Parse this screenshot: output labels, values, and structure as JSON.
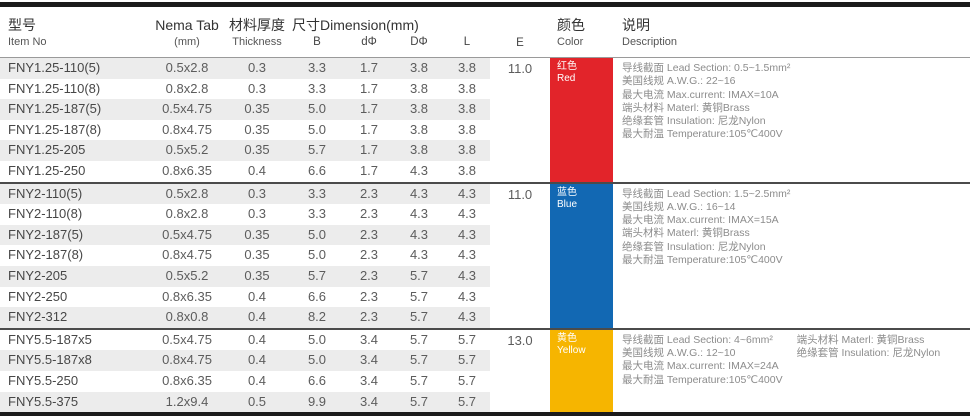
{
  "header": {
    "col_item": {
      "zh": "型号",
      "en": "Item No"
    },
    "col_nema": {
      "zh": "Nema Tab",
      "en": "(mm)"
    },
    "col_thickness": {
      "zh": "材料厚度",
      "en": "Thickness"
    },
    "col_dimension": {
      "zh": "尺寸Dimension(mm)"
    },
    "sub": {
      "b": "B",
      "d": "dΦ",
      "D": "DΦ",
      "l": "L",
      "e": "E"
    },
    "col_color": {
      "zh": "颜色",
      "en": "Color"
    },
    "col_desc": {
      "zh": "说明",
      "en": "Description"
    }
  },
  "colors": {
    "red": "#E2242A",
    "blue": "#1268B3",
    "yellow": "#F6B500",
    "stripe": "#ECECEC",
    "bar": "#1B1B1B"
  },
  "groups": [
    {
      "e": "11.0",
      "color_key": "red",
      "color_zh": "红色",
      "color_en": "Red",
      "rows": [
        [
          "FNY1.25-110(5)",
          "0.5x2.8",
          "0.3",
          "3.3",
          "1.7",
          "3.8",
          "3.8"
        ],
        [
          "FNY1.25-110(8)",
          "0.8x2.8",
          "0.3",
          "3.3",
          "1.7",
          "3.8",
          "3.8"
        ],
        [
          "FNY1.25-187(5)",
          "0.5x4.75",
          "0.35",
          "5.0",
          "1.7",
          "3.8",
          "3.8"
        ],
        [
          "FNY1.25-187(8)",
          "0.8x4.75",
          "0.35",
          "5.0",
          "1.7",
          "3.8",
          "3.8"
        ],
        [
          "FNY1.25-205",
          "0.5x5.2",
          "0.35",
          "5.7",
          "1.7",
          "3.8",
          "3.8"
        ],
        [
          "FNY1.25-250",
          "0.8x6.35",
          "0.4",
          "6.6",
          "1.7",
          "4.3",
          "3.8"
        ]
      ],
      "desc_left": [
        "导线截面  Lead Section: 0.5~1.5mm²",
        "美国线规  A.W.G.: 22~16",
        "最大电流  Max.current: IMAX=10A",
        "端头材料  Materl: 黄铜Brass",
        "绝缘套管  Insulation: 尼龙Nylon",
        "最大耐温  Temperature:105℃400V"
      ],
      "desc_right": []
    },
    {
      "e": "11.0",
      "color_key": "blue",
      "color_zh": "蓝色",
      "color_en": "Blue",
      "rows": [
        [
          "FNY2-110(5)",
          "0.5x2.8",
          "0.3",
          "3.3",
          "2.3",
          "4.3",
          "4.3"
        ],
        [
          "FNY2-110(8)",
          "0.8x2.8",
          "0.3",
          "3.3",
          "2.3",
          "4.3",
          "4.3"
        ],
        [
          "FNY2-187(5)",
          "0.5x4.75",
          "0.35",
          "5.0",
          "2.3",
          "4.3",
          "4.3"
        ],
        [
          "FNY2-187(8)",
          "0.8x4.75",
          "0.35",
          "5.0",
          "2.3",
          "4.3",
          "4.3"
        ],
        [
          "FNY2-205",
          "0.5x5.2",
          "0.35",
          "5.7",
          "2.3",
          "5.7",
          "4.3"
        ],
        [
          "FNY2-250",
          "0.8x6.35",
          "0.4",
          "6.6",
          "2.3",
          "5.7",
          "4.3"
        ],
        [
          "FNY2-312",
          "0.8x0.8",
          "0.4",
          "8.2",
          "2.3",
          "5.7",
          "4.3"
        ]
      ],
      "desc_left": [
        "导线截面  Lead Section: 1.5~2.5mm²",
        "美国线规  A.W.G.: 16~14",
        "最大电流  Max.current: IMAX=15A",
        "端头材料  Materl: 黄铜Brass",
        "绝缘套管  Insulation: 尼龙Nylon",
        "最大耐温  Temperature:105℃400V"
      ],
      "desc_right": []
    },
    {
      "e": "13.0",
      "color_key": "yellow",
      "color_zh": "黄色",
      "color_en": "Yellow",
      "rows": [
        [
          "FNY5.5-187x5",
          "0.5x4.75",
          "0.4",
          "5.0",
          "3.4",
          "5.7",
          "5.7"
        ],
        [
          "FNY5.5-187x8",
          "0.8x4.75",
          "0.4",
          "5.0",
          "3.4",
          "5.7",
          "5.7"
        ],
        [
          "FNY5.5-250",
          "0.8x6.35",
          "0.4",
          "6.6",
          "3.4",
          "5.7",
          "5.7"
        ],
        [
          "FNY5.5-375",
          "1.2x9.4",
          "0.5",
          "9.9",
          "3.4",
          "5.7",
          "5.7"
        ]
      ],
      "desc_left": [
        "导线截面  Lead Section: 4~6mm²",
        "美国线规  A.W.G.: 12~10",
        "最大电流  Max.current: IMAX=24A",
        "最大耐温  Temperature:105℃400V"
      ],
      "desc_right": [
        "端头材料  Materl: 黄铜Brass",
        "绝缘套管  Insulation: 尼龙Nylon"
      ]
    }
  ]
}
